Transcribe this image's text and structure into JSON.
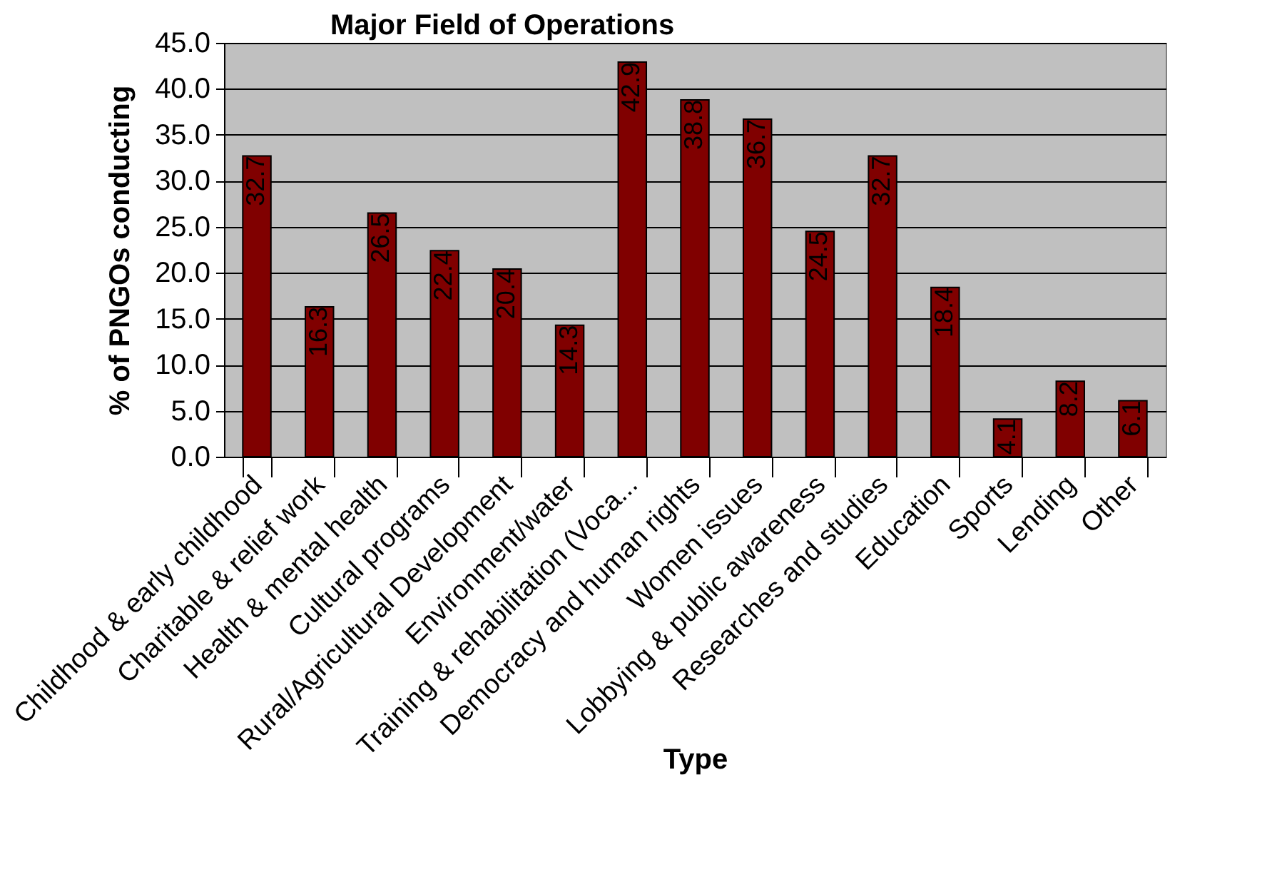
{
  "chart_data": {
    "type": "bar",
    "title": "Major Field of Operations",
    "xlabel": "Type",
    "ylabel": "% of PNGOs conducting",
    "categories": [
      "Childhood & early childhood",
      "Charitable & relief work",
      "Health & mental health",
      "Cultural programs",
      "Rural/Agricultural Development",
      "Environment/water",
      "Training & rehabilitation (Voca...",
      "Democracy and human rights",
      "Women issues",
      "Lobbying & public awareness",
      "Researches and studies",
      "Education",
      "Sports",
      "Lending",
      "Other"
    ],
    "values": [
      32.7,
      16.3,
      26.5,
      22.4,
      20.4,
      14.3,
      42.9,
      38.8,
      36.7,
      24.5,
      32.7,
      18.4,
      4.1,
      8.2,
      6.1
    ],
    "color": "#800000",
    "data_labels": true,
    "ylim": [
      0,
      45
    ],
    "yticks": [
      {
        "value": 0,
        "label": "0.0"
      },
      {
        "value": 5,
        "label": "5.0"
      },
      {
        "value": 10,
        "label": "10.0"
      },
      {
        "value": 15,
        "label": "15.0"
      },
      {
        "value": 20,
        "label": "20.0"
      },
      {
        "value": 25,
        "label": "25.0"
      },
      {
        "value": 30,
        "label": "30.0"
      },
      {
        "value": 35,
        "label": "35.0"
      },
      {
        "value": 40,
        "label": "40.0"
      },
      {
        "value": 45,
        "label": "45.0"
      }
    ],
    "grid": "y"
  }
}
